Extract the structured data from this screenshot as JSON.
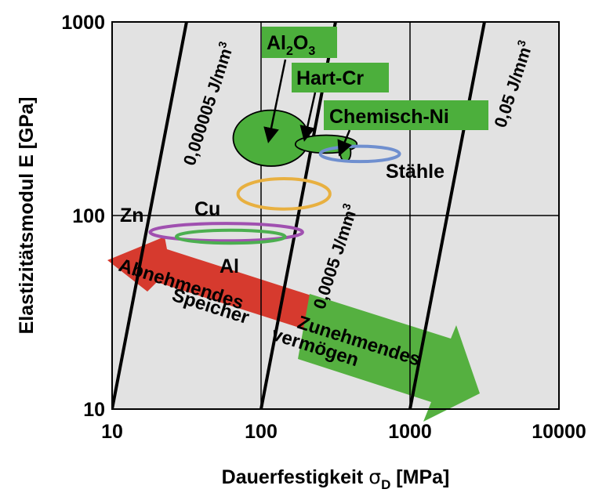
{
  "chart_data": {
    "type": "scatter",
    "x_scale": "log",
    "y_scale": "log",
    "xlim": [
      10,
      10000
    ],
    "ylim": [
      10,
      1000
    ],
    "grid": true,
    "xlabel": "Dauerfestigkeit σD [MPa]",
    "xlabel_main": "Dauerfestigkeit ",
    "xlabel_sym": "σ",
    "xlabel_sub": "D",
    "xlabel_unit": " [MPa]",
    "ylabel": "Elastizitätsmodul E [GPa]",
    "x_ticks": [
      "10",
      "100",
      "1000",
      "10000"
    ],
    "y_ticks": [
      "10",
      "100",
      "1000"
    ],
    "energy_lines": [
      {
        "label": "0,000005 J/mm³",
        "text": "0,000005 J/mm",
        "sup": "3",
        "from": [
          10,
          10
        ],
        "to": [
          31.6,
          1000
        ]
      },
      {
        "label": "0,0005 J/mm³",
        "text": "0,0005 J/mm",
        "sup": "3",
        "from": [
          100,
          10
        ],
        "to": [
          316,
          1000
        ]
      },
      {
        "label": "0,05 J/mm³",
        "text": "0,05 J/mm",
        "sup": "3",
        "from": [
          1000,
          10
        ],
        "to": [
          3160,
          1000
        ]
      }
    ],
    "materials": [
      {
        "name": "Al2O3",
        "label_main": "Al",
        "sub1": "2",
        "mid": "O",
        "sub2": "3",
        "x_range": [
          65,
          210
        ],
        "y_range": [
          180,
          350
        ],
        "fill": "#4caf3c",
        "stroke": "#000000",
        "label_bg": "#4caf3c"
      },
      {
        "name": "Hart-Cr",
        "x_range": [
          170,
          440
        ],
        "y_range": [
          210,
          260
        ],
        "fill": "#4caf3c",
        "stroke": "#000000",
        "label_bg": "#4caf3c"
      },
      {
        "name": "Chemisch-Ni",
        "x_range": [
          340,
          400
        ],
        "y_range": [
          190,
          235
        ],
        "fill": "#4caf3c",
        "stroke": "#000000",
        "label_bg": "#4caf3c"
      },
      {
        "name": "Stähle",
        "x_range": [
          250,
          850
        ],
        "y_range": [
          190,
          228
        ],
        "fill": "none",
        "stroke": "#6f8fcf"
      },
      {
        "name": "Cu",
        "x_range": [
          70,
          290
        ],
        "y_range": [
          108,
          155
        ],
        "fill": "none",
        "stroke": "#e8b040"
      },
      {
        "name": "Zn",
        "x_range": [
          18,
          190
        ],
        "y_range": [
          74,
          91
        ],
        "fill": "none",
        "stroke": "#a050b0"
      },
      {
        "name": "Al",
        "x_range": [
          27,
          145
        ],
        "y_range": [
          72,
          84
        ],
        "fill": "none",
        "stroke": "#4caf50"
      }
    ],
    "arrows": [
      {
        "text": "Abnehmendes Speichervermögen",
        "line1": "Abnehmendes",
        "line2": "Speicher",
        "color": "#d63a2e",
        "direction": "decreasing"
      },
      {
        "text": "Zunehmendes Speichervermögen",
        "line1": "Zunehmendes",
        "line2": "vermögen",
        "color": "#55b040",
        "direction": "increasing"
      }
    ],
    "colors": {
      "plot_bg": "#e2e2e2",
      "grid": "#000000",
      "frame": "#000000"
    }
  }
}
